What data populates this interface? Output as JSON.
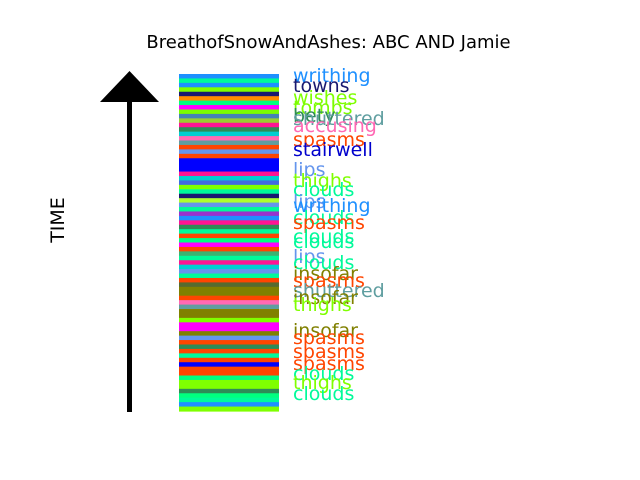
{
  "chart_data": {
    "type": "bar",
    "title": "BreathofSnowAndAshes: ABC AND Jamie",
    "ylabel": "TIME",
    "stripe_colors": [
      "#1e90ff",
      "#00fa9a",
      "#1e90ff",
      "#7fff00",
      "#191970",
      "#ff8c00",
      "#00ff7f",
      "#ff00ff",
      "#7cfc00",
      "#4682b4",
      "#9acd32",
      "#ff1493",
      "#2e8b57",
      "#00ced1",
      "#ff69b4",
      "#5f9ea0",
      "#ff4500",
      "#6495ed",
      "#ff4500",
      "#0000ff",
      "#0000ff",
      "#0000ff",
      "#ff1493",
      "#00ced1",
      "#4169e1",
      "#7fff00",
      "#00fa9a",
      "#191970",
      "#adff2f",
      "#6495ed",
      "#00fa9a",
      "#9932cc",
      "#1e90ff",
      "#ff1493",
      "#2e8b57",
      "#00fa9a",
      "#ff4500",
      "#00ff7f",
      "#ff00ff",
      "#ff4500",
      "#3cb371",
      "#00fa9a",
      "#ff1493",
      "#00ced1",
      "#6495ed",
      "#00fa9a",
      "#ff4500",
      "#556b2f",
      "#808000",
      "#808000",
      "#ff4500",
      "#ff69b4",
      "#5f9ea0",
      "#808000",
      "#808000",
      "#7fff00",
      "#ff00ff",
      "#ff00ff",
      "#808000",
      "#6495ed",
      "#ff4500",
      "#2e8b57",
      "#ff4500",
      "#00fa9a",
      "#ff4500",
      "#0000ff",
      "#ff4500",
      "#ff4500",
      "#00ff7f",
      "#7fff00",
      "#7fff00",
      "#2e8b57",
      "#00ff7f",
      "#00fa9a",
      "#1e90ff",
      "#7fff00"
    ],
    "labels": [
      {
        "text": "writhing",
        "color": "#1e90ff"
      },
      {
        "text": "towns",
        "color": "#191970"
      },
      {
        "text": "wishes",
        "color": "#7fff00"
      },
      {
        "text": "tombs",
        "color": "#7cfc00"
      },
      {
        "text": "bety",
        "color": "#2e8b57"
      },
      {
        "text": "shuttered",
        "color": "#5f9ea0"
      },
      {
        "text": "accusing",
        "color": "#ff69b4"
      },
      {
        "text": "spasms",
        "color": "#ff4500"
      },
      {
        "text": "stairwell",
        "color": "#0000cd"
      },
      {
        "text": "lips",
        "color": "#6495ed"
      },
      {
        "text": "thighs",
        "color": "#7fff00"
      },
      {
        "text": "clouds",
        "color": "#00fa9a"
      },
      {
        "text": "lips",
        "color": "#6495ed"
      },
      {
        "text": "writhing",
        "color": "#1e90ff"
      },
      {
        "text": "clouds",
        "color": "#00fa9a"
      },
      {
        "text": "spasms",
        "color": "#ff4500"
      },
      {
        "text": "clouds",
        "color": "#00fa9a"
      },
      {
        "text": "clouds",
        "color": "#00fa9a"
      },
      {
        "text": "lips",
        "color": "#6495ed"
      },
      {
        "text": "clouds",
        "color": "#00fa9a"
      },
      {
        "text": "insofar",
        "color": "#808000"
      },
      {
        "text": "spasms",
        "color": "#ff4500"
      },
      {
        "text": "shuttered",
        "color": "#5f9ea0"
      },
      {
        "text": "insofar",
        "color": "#808000"
      },
      {
        "text": "thighs",
        "color": "#7fff00"
      },
      {
        "text": "insofar",
        "color": "#808000"
      },
      {
        "text": "spasms",
        "color": "#ff4500"
      },
      {
        "text": "spasms",
        "color": "#ff4500"
      },
      {
        "text": "spasms",
        "color": "#ff4500"
      },
      {
        "text": "clouds",
        "color": "#00fa9a"
      },
      {
        "text": "thighs",
        "color": "#7fff00"
      },
      {
        "text": "clouds",
        "color": "#00fa9a"
      }
    ]
  }
}
